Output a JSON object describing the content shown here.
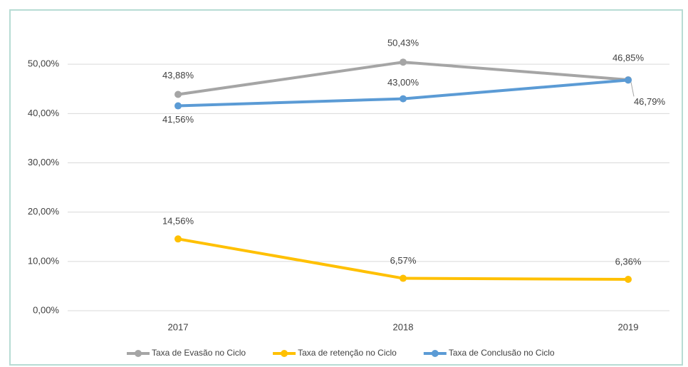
{
  "chart_data": {
    "type": "line",
    "categories": [
      "2017",
      "2018",
      "2019"
    ],
    "series": [
      {
        "name": "Taxa de Evasão no Ciclo",
        "color": "#a5a5a5",
        "values": [
          43.88,
          50.43,
          46.85
        ],
        "value_labels": [
          "43,88%",
          "50,43%",
          "46,85%"
        ]
      },
      {
        "name": "Taxa de retenção no Ciclo",
        "color": "#ffc000",
        "values": [
          14.56,
          6.57,
          6.36
        ],
        "value_labels": [
          "14,56%",
          "6,57%",
          "6,36%"
        ]
      },
      {
        "name": "Taxa de Conclusão no Ciclo",
        "color": "#5b9bd5",
        "values": [
          41.56,
          43.0,
          46.79
        ],
        "value_labels": [
          "41,56%",
          "43,00%",
          "46,79%"
        ]
      }
    ],
    "ylim": [
      0,
      60
    ],
    "yticks": [
      {
        "value": 0,
        "label": "0,00%"
      },
      {
        "value": 10,
        "label": "10,00%"
      },
      {
        "value": 20,
        "label": "20,00%"
      },
      {
        "value": 30,
        "label": "30,00%"
      },
      {
        "value": 40,
        "label": "40,00%"
      },
      {
        "value": 50,
        "label": "50,00%"
      }
    ],
    "grid": true,
    "legend": "bottom"
  }
}
